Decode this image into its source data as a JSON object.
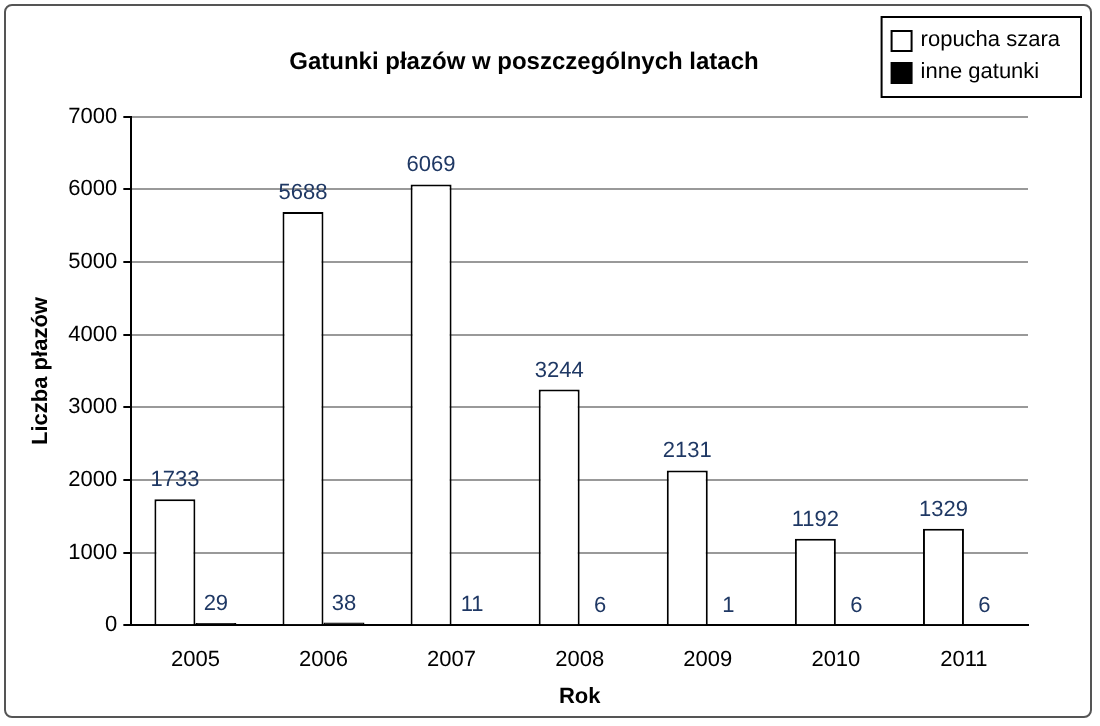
{
  "chart_data": {
    "type": "bar",
    "title": "Gatunki płazów w poszczególnych latach",
    "xlabel": "Rok",
    "ylabel": "Liczba płazów",
    "categories": [
      "2005",
      "2006",
      "2007",
      "2008",
      "2009",
      "2010",
      "2011"
    ],
    "series": [
      {
        "name": "ropucha szara",
        "color": "#ffffff",
        "values": [
          1733,
          5688,
          6069,
          3244,
          2131,
          1192,
          1329
        ]
      },
      {
        "name": "inne gatunki",
        "color": "#000000",
        "values": [
          29,
          38,
          11,
          6,
          1,
          6,
          6
        ]
      }
    ],
    "ylim": [
      0,
      7000
    ],
    "yticks": [
      0,
      1000,
      2000,
      3000,
      4000,
      5000,
      6000,
      7000
    ],
    "grid": "y",
    "legend": "top right",
    "data_labels": true
  }
}
